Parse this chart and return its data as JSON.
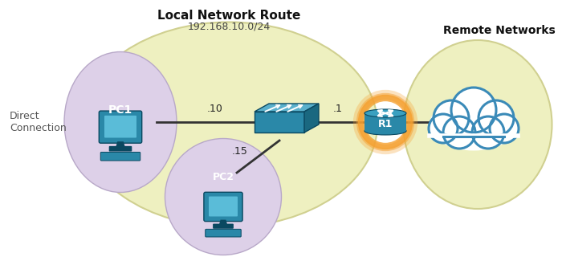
{
  "title": "Local Network Route",
  "subtitle": "192.168.10.0/24",
  "remote_label": "Remote Networks",
  "direct_label": "Direct\nConnection",
  "pc1_label": "PC1",
  "pc2_label": "PC2",
  "r1_label": "R1",
  "pc1_ip": ".10",
  "pc2_ip": ".15",
  "r1_ip": ".1",
  "bg_color": "#ffffff",
  "local_ellipse_color": "#eef0c0",
  "local_ellipse_edge": "#d0d090",
  "pc1_ellipse_color": "#ddd0e8",
  "pc1_ellipse_edge": "#b8a8c8",
  "pc2_ellipse_color": "#ddd0e8",
  "pc2_ellipse_edge": "#b8a8c8",
  "remote_ellipse_color": "#eef0c0",
  "remote_ellipse_edge": "#d0d090",
  "switch_top_color": "#5ab0cc",
  "switch_front_color": "#2a88a8",
  "switch_right_color": "#1a6880",
  "switch_edge_color": "#0a4860",
  "router_body_color": "#2a88a8",
  "router_top_color": "#3aa0c0",
  "router_ring_color": "#f5a030",
  "router_label_color": "#ffffff",
  "cloud_fill": "#ffffff",
  "cloud_edge": "#3a8ab8",
  "line_color": "#333333",
  "title_fontsize": 11,
  "subtitle_fontsize": 9,
  "ip_fontsize": 9,
  "label_fontsize": 9
}
